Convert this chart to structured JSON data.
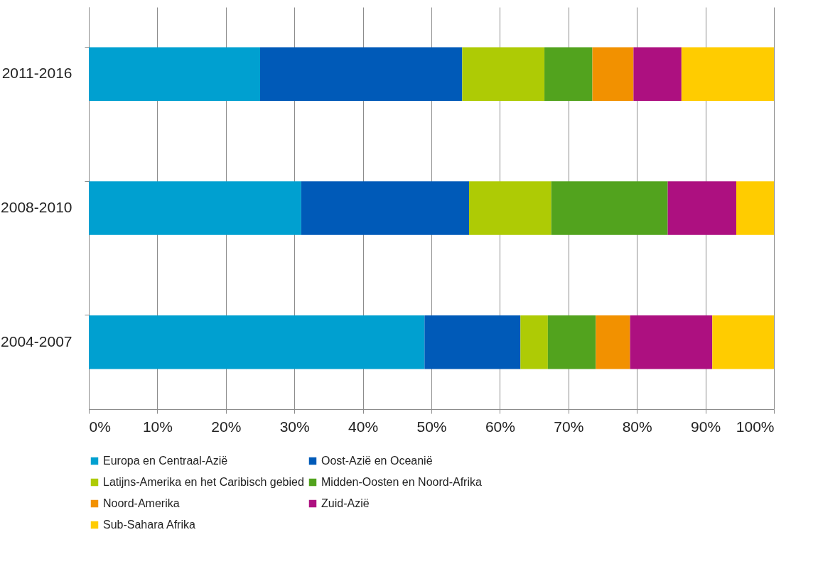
{
  "chart_data": {
    "type": "bar",
    "orientation": "horizontal",
    "stacked": true,
    "categories": [
      "2011-2016",
      "2008-2010",
      "2004-2007"
    ],
    "series": [
      {
        "name": "Europa en Centraal-Azië",
        "color": "#00a0d0",
        "values": [
          25,
          31,
          49
        ]
      },
      {
        "name": "Oost-Azië en Oceanië",
        "color": "#005ab8",
        "values": [
          29.5,
          24.5,
          14
        ]
      },
      {
        "name": "Latijns-Amerika en het Caribisch gebied",
        "color": "#aecb05",
        "values": [
          12,
          12,
          4
        ]
      },
      {
        "name": "Midden-Oosten en Noord-Afrika",
        "color": "#52a31e",
        "values": [
          7,
          17,
          7
        ]
      },
      {
        "name": "Noord-Amerika",
        "color": "#f29100",
        "values": [
          6,
          0,
          5
        ]
      },
      {
        "name": "Zuid-Azië",
        "color": "#ad1080",
        "values": [
          7,
          10,
          12
        ]
      },
      {
        "name": "Sub-Sahara Afrika",
        "color": "#ffcc00",
        "values": [
          13.5,
          5.5,
          9
        ]
      }
    ],
    "xlim": [
      0,
      100
    ],
    "xticks": [
      {
        "value": 0,
        "label": "0%"
      },
      {
        "value": 10,
        "label": "10%"
      },
      {
        "value": 20,
        "label": "20%"
      },
      {
        "value": 30,
        "label": "30%"
      },
      {
        "value": 40,
        "label": "40%"
      },
      {
        "value": 50,
        "label": "50%"
      },
      {
        "value": 60,
        "label": "60%"
      },
      {
        "value": 70,
        "label": "70%"
      },
      {
        "value": 80,
        "label": "80%"
      },
      {
        "value": 90,
        "label": "90%"
      },
      {
        "value": 100,
        "label": "100%"
      }
    ],
    "grid": "x",
    "legend": "bottom"
  }
}
